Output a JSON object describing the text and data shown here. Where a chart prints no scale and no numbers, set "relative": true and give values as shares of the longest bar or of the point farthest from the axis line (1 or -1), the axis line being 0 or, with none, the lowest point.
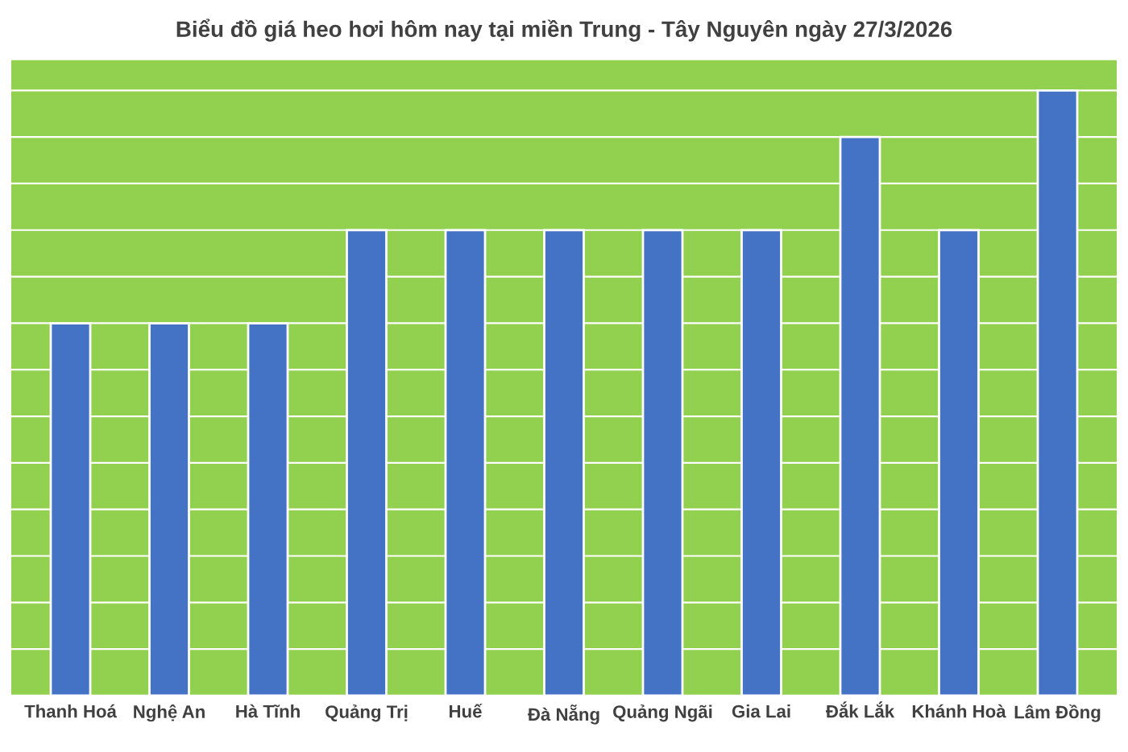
{
  "chart_data": {
    "type": "bar",
    "title": "Biểu đồ giá heo hơi hôm nay tại miền Trung - Tây Nguyên ngày 27/3/2026",
    "categories": [
      "Thanh Hoá",
      "Nghệ An",
      "Hà Tĩnh",
      "Quảng Trị",
      "Huế",
      "Đà Nẵng",
      "Quảng Ngãi",
      "Gia Lai",
      "Đắk Lắk",
      "Khánh Hoà",
      "Lâm Đồng"
    ],
    "values": [
      0.615,
      0.615,
      0.615,
      0.769,
      0.769,
      0.769,
      0.769,
      0.769,
      0.923,
      0.769,
      1
    ],
    "color": "#4472c4",
    "relative": true,
    "grid": "y"
  }
}
